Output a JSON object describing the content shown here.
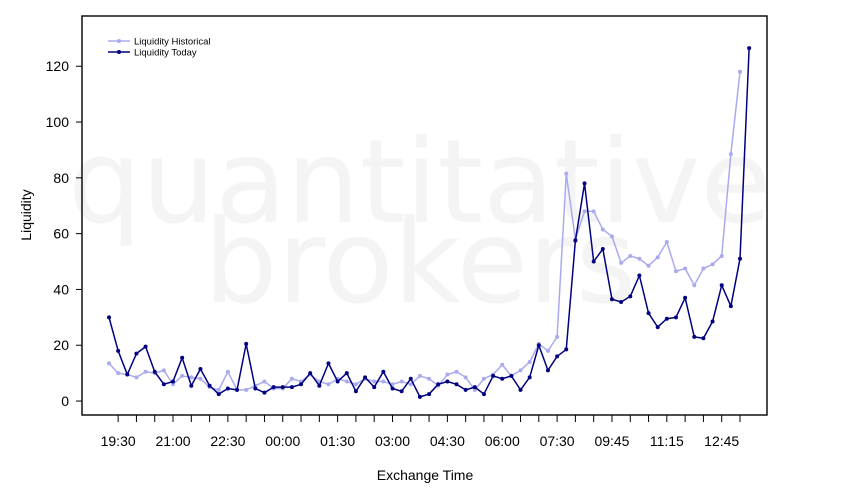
{
  "chart_data": {
    "type": "line",
    "title": "",
    "xlabel": "Exchange Time",
    "ylabel": "Liquidity",
    "ylim": [
      -5,
      138
    ],
    "yticks": [
      0,
      20,
      40,
      60,
      80,
      100,
      120
    ],
    "x_tick_labels": [
      "19:30",
      "21:00",
      "22:30",
      "00:00",
      "01:30",
      "03:00",
      "04:30",
      "06:00",
      "07:30",
      "09:45",
      "11:15",
      "12:45"
    ],
    "watermark": [
      "quantitative",
      "brokers"
    ],
    "legend_position": "top-left",
    "grid": false,
    "series": [
      {
        "name": "Liquidity Historical",
        "color": "#aaaaee",
        "values": [
          13.5,
          10,
          9.5,
          8.5,
          10.5,
          10,
          11,
          6,
          9,
          8.5,
          8,
          5,
          4,
          10.5,
          4,
          4,
          5.5,
          7,
          4.5,
          4.5,
          8,
          7,
          9.5,
          7,
          6,
          8,
          7,
          6,
          8,
          7,
          7,
          6,
          7,
          6,
          9,
          8,
          5.5,
          9.5,
          10.5,
          8.5,
          4,
          8,
          9.5,
          13,
          9,
          11,
          14,
          20.5,
          18,
          23,
          81.5,
          58,
          68,
          68,
          61.5,
          59,
          49.5,
          52,
          51,
          48.5,
          51.5,
          57,
          46.5,
          47.5,
          41.5,
          47.5,
          49,
          52,
          88.5,
          118
        ]
      },
      {
        "name": "Liquidity Today",
        "color": "#000080",
        "values": [
          30,
          18,
          9.5,
          17,
          19.5,
          10.5,
          6,
          7,
          15.5,
          5.5,
          11.5,
          5.5,
          2.5,
          4.5,
          4,
          20.5,
          4.5,
          3,
          5,
          5,
          5,
          6,
          10,
          5.5,
          13.5,
          7,
          10,
          3.5,
          8.5,
          5,
          10.5,
          4.5,
          3.5,
          8,
          1.5,
          2.5,
          6,
          7,
          6,
          4,
          5,
          2.5,
          9,
          8,
          9,
          4,
          8.5,
          20,
          11,
          16,
          18.5,
          57.5,
          78,
          50,
          54.5,
          36.5,
          35.5,
          37.5,
          45,
          31.5,
          26.5,
          29.5,
          30,
          37,
          23,
          22.5,
          28.5,
          41.5,
          34,
          51,
          126.5
        ]
      }
    ]
  }
}
